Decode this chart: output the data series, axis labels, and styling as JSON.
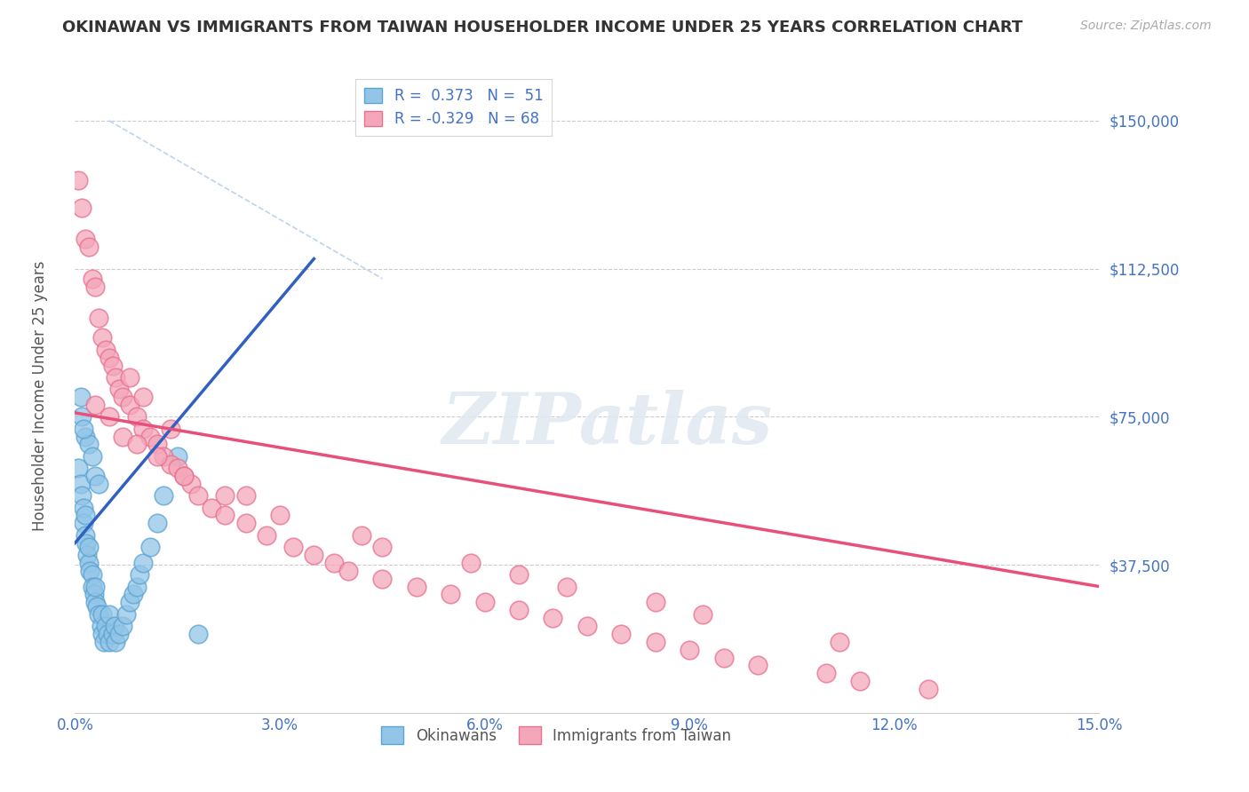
{
  "title": "OKINAWAN VS IMMIGRANTS FROM TAIWAN HOUSEHOLDER INCOME UNDER 25 YEARS CORRELATION CHART",
  "source": "Source: ZipAtlas.com",
  "ylabel": "Householder Income Under 25 years",
  "xlim": [
    0.0,
    15.0
  ],
  "ylim": [
    0,
    162500
  ],
  "yticks": [
    0,
    37500,
    75000,
    112500,
    150000
  ],
  "ytick_labels": [
    "",
    "$37,500",
    "$75,000",
    "$112,500",
    "$150,000"
  ],
  "xticks": [
    0.0,
    3.0,
    6.0,
    9.0,
    12.0,
    15.0
  ],
  "xtick_labels": [
    "0.0%",
    "3.0%",
    "6.0%",
    "9.0%",
    "12.0%",
    "15.0%"
  ],
  "blue_color": "#92C5E8",
  "pink_color": "#F4A7B9",
  "blue_edge_color": "#5BA3D0",
  "pink_edge_color": "#E87090",
  "blue_line_color": "#3060C0",
  "pink_line_color": "#E8507A",
  "dash_line_color": "#B0C8E8",
  "legend_blue_label": "R =  0.373   N =  51",
  "legend_pink_label": "R = -0.329   N = 68",
  "legend_blue_series": "Okinawans",
  "legend_pink_series": "Immigrants from Taiwan",
  "blue_line_x": [
    0.0,
    3.5
  ],
  "blue_line_y": [
    43000,
    115000
  ],
  "pink_line_x": [
    0.0,
    15.0
  ],
  "pink_line_y": [
    76000,
    32000
  ],
  "dash_line_x": [
    0.5,
    4.5
  ],
  "dash_line_y": [
    150000,
    110000
  ],
  "blue_scatter_x": [
    0.05,
    0.08,
    0.1,
    0.12,
    0.13,
    0.15,
    0.15,
    0.17,
    0.18,
    0.2,
    0.2,
    0.22,
    0.25,
    0.25,
    0.28,
    0.3,
    0.3,
    0.32,
    0.35,
    0.38,
    0.4,
    0.4,
    0.42,
    0.45,
    0.48,
    0.5,
    0.5,
    0.55,
    0.58,
    0.6,
    0.65,
    0.7,
    0.75,
    0.8,
    0.85,
    0.9,
    0.95,
    1.0,
    1.1,
    1.2,
    1.3,
    1.5,
    0.1,
    0.15,
    0.2,
    0.25,
    0.3,
    0.35,
    0.08,
    0.12,
    1.8
  ],
  "blue_scatter_y": [
    62000,
    58000,
    55000,
    52000,
    48000,
    50000,
    45000,
    43000,
    40000,
    38000,
    42000,
    36000,
    35000,
    32000,
    30000,
    28000,
    32000,
    27000,
    25000,
    22000,
    20000,
    25000,
    18000,
    22000,
    20000,
    18000,
    25000,
    20000,
    22000,
    18000,
    20000,
    22000,
    25000,
    28000,
    30000,
    32000,
    35000,
    38000,
    42000,
    48000,
    55000,
    65000,
    75000,
    70000,
    68000,
    65000,
    60000,
    58000,
    80000,
    72000,
    20000
  ],
  "pink_scatter_x": [
    0.05,
    0.1,
    0.15,
    0.2,
    0.25,
    0.3,
    0.35,
    0.4,
    0.45,
    0.5,
    0.55,
    0.6,
    0.65,
    0.7,
    0.8,
    0.9,
    1.0,
    1.1,
    1.2,
    1.3,
    1.4,
    1.5,
    1.6,
    1.7,
    1.8,
    2.0,
    2.2,
    2.5,
    2.8,
    3.2,
    3.5,
    3.8,
    4.0,
    4.5,
    5.0,
    5.5,
    6.0,
    6.5,
    7.0,
    7.5,
    8.0,
    8.5,
    9.0,
    9.5,
    10.0,
    11.0,
    11.5,
    12.5,
    0.3,
    0.5,
    0.7,
    0.9,
    1.2,
    1.6,
    2.2,
    3.0,
    4.2,
    5.8,
    7.2,
    9.2,
    11.2,
    0.8,
    1.0,
    1.4,
    2.5,
    4.5,
    6.5,
    8.5
  ],
  "pink_scatter_y": [
    135000,
    128000,
    120000,
    118000,
    110000,
    108000,
    100000,
    95000,
    92000,
    90000,
    88000,
    85000,
    82000,
    80000,
    78000,
    75000,
    72000,
    70000,
    68000,
    65000,
    63000,
    62000,
    60000,
    58000,
    55000,
    52000,
    50000,
    48000,
    45000,
    42000,
    40000,
    38000,
    36000,
    34000,
    32000,
    30000,
    28000,
    26000,
    24000,
    22000,
    20000,
    18000,
    16000,
    14000,
    12000,
    10000,
    8000,
    6000,
    78000,
    75000,
    70000,
    68000,
    65000,
    60000,
    55000,
    50000,
    45000,
    38000,
    32000,
    25000,
    18000,
    85000,
    80000,
    72000,
    55000,
    42000,
    35000,
    28000
  ]
}
